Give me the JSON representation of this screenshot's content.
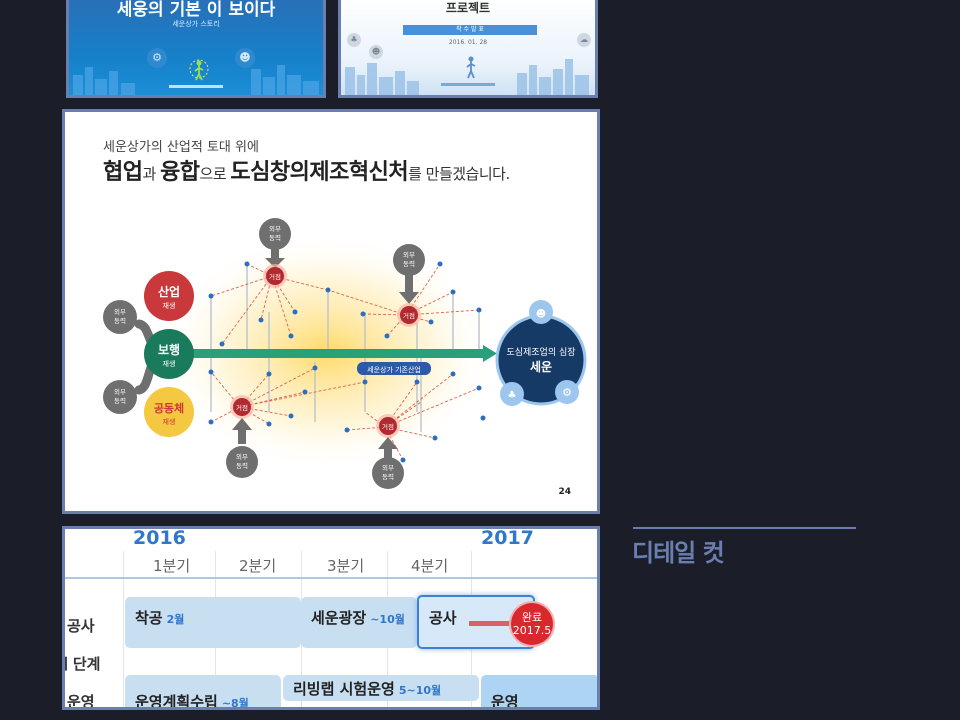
{
  "thumb1": {
    "title": "세웅의 기본 이 보이다",
    "subtitle": "세운상가 스토리",
    "icons": [
      "gear-icon",
      "walking-person-icon",
      "people-icon"
    ]
  },
  "thumb2": {
    "title": "프로젝트",
    "bar_label": "착 수 발 표",
    "date": "2016. 01. 28"
  },
  "slide": {
    "kicker": "세운상가의 산업적 토대 위에",
    "headline": {
      "p1": "협업",
      "p2": "과 ",
      "p3": "융합",
      "p4": "으로 ",
      "p5": "도심창의제조혁신처",
      "p6": "를 만들겠습니다."
    },
    "pillars": {
      "industry": {
        "title": "산업",
        "sub": "재생"
      },
      "walk": {
        "title": "보행",
        "sub": "재생"
      },
      "community": {
        "title": "공동체",
        "sub": "재생"
      }
    },
    "external_force": "외부\n동력",
    "hub_label": "거점",
    "arrow_label": "세운상가 기존산업",
    "target": {
      "line1": "도심제조업의 심장",
      "line2": "세운"
    },
    "page_number": "24",
    "colors": {
      "industry": "#c9383a",
      "walk": "#1a7a5c",
      "community": "#f5c842",
      "arrow": "#2aa07a",
      "target": "#163a66",
      "hub": "#b02a30"
    }
  },
  "timeline": {
    "years": [
      "2016",
      "2017"
    ],
    "quarters": [
      "1분기",
      "2분기",
      "3분기",
      "4분기"
    ],
    "rows": [
      "공사",
      "단계",
      "운영"
    ],
    "bars": {
      "start": {
        "label": "착공",
        "note": "2월"
      },
      "plaza": {
        "label": "세운광장",
        "note": "~10월"
      },
      "construction": {
        "label": "공사"
      },
      "plan": {
        "label": "운영계획수립",
        "note": "~8월"
      },
      "livinglab": {
        "label": "리빙랩 시험운영",
        "note": "5~10월"
      },
      "operation": {
        "label": "운영"
      }
    },
    "badge": {
      "line1": "완료",
      "line2": "2017.5"
    }
  },
  "caption": "디테일 컷"
}
